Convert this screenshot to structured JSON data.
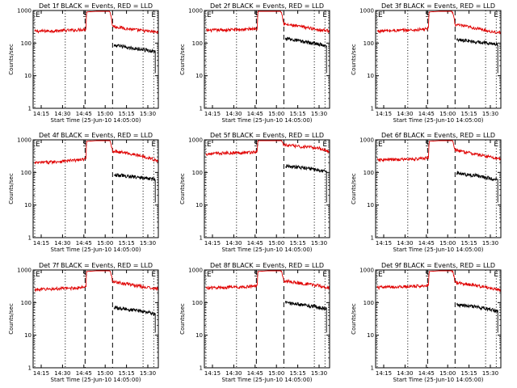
{
  "chart_data": {
    "type": "line",
    "layout": "3x3 grid",
    "y_scale": "log",
    "ylim": [
      1,
      1000
    ],
    "ytick_labels": [
      "1",
      "10",
      "100",
      "1000"
    ],
    "ylabel": "Counts/sec",
    "xlabel": "Start Time (25-Jun-10 14:05:00)",
    "xtick_labels": [
      "14:15",
      "14:30",
      "14:45",
      "15:00",
      "15:15",
      "15:30"
    ],
    "xlim_minutes": [
      5,
      45
    ],
    "colors": {
      "events": "#000000",
      "lld": "#e00000"
    },
    "markers": [
      {
        "label": "E",
        "time_min": 5,
        "style": "dotted"
      },
      {
        "label": "",
        "time_min": 15,
        "style": "dotted"
      },
      {
        "label": "S",
        "time_min": 21.5,
        "style": "dashed"
      },
      {
        "label": "",
        "time_min": 30.5,
        "style": "dashed"
      },
      {
        "label": "",
        "time_min": 40.5,
        "style": "dotted"
      },
      {
        "label": "E",
        "time_min": 44,
        "style": "dotted"
      }
    ],
    "panels": [
      {
        "title": "Det 1f BLACK = Events, RED = LLD",
        "lld": [
          [
            5,
            230
          ],
          [
            12,
            240
          ],
          [
            18,
            250
          ],
          [
            21.8,
            270
          ],
          [
            22,
            900
          ],
          [
            29.5,
            1000
          ],
          [
            30.5,
            330
          ],
          [
            36,
            270
          ],
          [
            42,
            230
          ],
          [
            46,
            215
          ]
        ],
        "events": [
          [
            31,
            85
          ],
          [
            37,
            70
          ],
          [
            44.5,
            55
          ]
        ]
      },
      {
        "title": "Det 2f BLACK = Events, RED = LLD",
        "lld": [
          [
            5,
            245
          ],
          [
            12,
            255
          ],
          [
            18,
            265
          ],
          [
            21.8,
            285
          ],
          [
            22,
            950
          ],
          [
            29.5,
            1000
          ],
          [
            30.5,
            380
          ],
          [
            36,
            320
          ],
          [
            42,
            260
          ],
          [
            46,
            235
          ]
        ],
        "events": [
          [
            31,
            140
          ],
          [
            37,
            110
          ],
          [
            44.5,
            85
          ]
        ]
      },
      {
        "title": "Det 3f BLACK = Events, RED = LLD",
        "lld": [
          [
            5,
            235
          ],
          [
            12,
            245
          ],
          [
            18,
            255
          ],
          [
            21.8,
            275
          ],
          [
            22,
            900
          ],
          [
            29.5,
            1000
          ],
          [
            30.5,
            370
          ],
          [
            36,
            300
          ],
          [
            42,
            230
          ],
          [
            46,
            205
          ]
        ],
        "events": [
          [
            31,
            130
          ],
          [
            37,
            110
          ],
          [
            44.5,
            90
          ]
        ]
      },
      {
        "title": "Det 4f BLACK = Events, RED = LLD",
        "lld": [
          [
            5,
            195
          ],
          [
            12,
            215
          ],
          [
            18,
            235
          ],
          [
            21.8,
            255
          ],
          [
            22,
            900
          ],
          [
            29.5,
            1000
          ],
          [
            30.5,
            460
          ],
          [
            36,
            380
          ],
          [
            42,
            290
          ],
          [
            46,
            210
          ]
        ],
        "events": [
          [
            31,
            85
          ],
          [
            37,
            75
          ],
          [
            44.5,
            60
          ]
        ]
      },
      {
        "title": "Det 5f BLACK = Events, RED = LLD",
        "lld": [
          [
            5,
            370
          ],
          [
            12,
            395
          ],
          [
            18,
            410
          ],
          [
            21.8,
            430
          ],
          [
            22,
            950
          ],
          [
            29.5,
            1000
          ],
          [
            30.5,
            700
          ],
          [
            36,
            620
          ],
          [
            42,
            560
          ],
          [
            46,
            420
          ]
        ],
        "events": [
          [
            31,
            155
          ],
          [
            37,
            140
          ],
          [
            44.5,
            105
          ]
        ]
      },
      {
        "title": "Det 6f BLACK = Events, RED = LLD",
        "lld": [
          [
            5,
            240
          ],
          [
            12,
            250
          ],
          [
            18,
            260
          ],
          [
            21.8,
            280
          ],
          [
            22,
            900
          ],
          [
            29.5,
            1000
          ],
          [
            30.5,
            480
          ],
          [
            36,
            380
          ],
          [
            42,
            300
          ],
          [
            46,
            255
          ]
        ],
        "events": [
          [
            31,
            95
          ],
          [
            37,
            80
          ],
          [
            44.5,
            60
          ]
        ]
      },
      {
        "title": "Det 7f BLACK = Events, RED = LLD",
        "lld": [
          [
            5,
            250
          ],
          [
            12,
            265
          ],
          [
            18,
            280
          ],
          [
            21.8,
            300
          ],
          [
            22,
            900
          ],
          [
            29.5,
            1000
          ],
          [
            30.5,
            450
          ],
          [
            36,
            360
          ],
          [
            42,
            290
          ],
          [
            46,
            260
          ]
        ],
        "events": [
          [
            31,
            70
          ],
          [
            37,
            60
          ],
          [
            44.5,
            45
          ]
        ]
      },
      {
        "title": "Det 8f BLACK = Events, RED = LLD",
        "lld": [
          [
            5,
            280
          ],
          [
            12,
            295
          ],
          [
            18,
            305
          ],
          [
            21.8,
            325
          ],
          [
            22,
            900
          ],
          [
            29.5,
            1000
          ],
          [
            30.5,
            470
          ],
          [
            36,
            390
          ],
          [
            42,
            330
          ],
          [
            46,
            270
          ]
        ],
        "events": [
          [
            31,
            100
          ],
          [
            37,
            85
          ],
          [
            44.5,
            65
          ]
        ]
      },
      {
        "title": "Det 9f BLACK = Events, RED = LLD",
        "lld": [
          [
            5,
            290
          ],
          [
            12,
            305
          ],
          [
            18,
            320
          ],
          [
            21.8,
            340
          ],
          [
            22,
            900
          ],
          [
            29.5,
            1000
          ],
          [
            30.5,
            420
          ],
          [
            36,
            350
          ],
          [
            42,
            280
          ],
          [
            46,
            235
          ]
        ],
        "events": [
          [
            31,
            85
          ],
          [
            37,
            75
          ],
          [
            44.5,
            55
          ]
        ]
      }
    ]
  }
}
